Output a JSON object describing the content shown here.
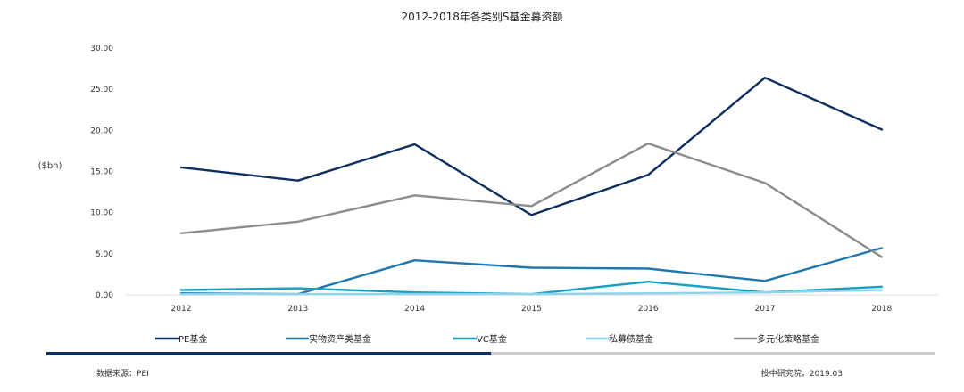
{
  "chart_data": {
    "type": "line",
    "title": "2012-2018年各类别S基金募资额",
    "ylabel": "($bn)",
    "xlabel": "",
    "ylim": [
      0,
      30
    ],
    "yticks": [
      "0.00",
      "5.00",
      "10.00",
      "15.00",
      "20.00",
      "25.00",
      "30.00"
    ],
    "categories": [
      "2012",
      "2013",
      "2014",
      "2015",
      "2016",
      "2017",
      "2018"
    ],
    "grid": false,
    "legend_position": "bottom",
    "series": [
      {
        "name": "PE基金",
        "color": "#0d2e5e",
        "values": [
          15.5,
          13.9,
          18.3,
          9.7,
          14.6,
          26.4,
          20.1
        ]
      },
      {
        "name": "实物资产类基金",
        "color": "#1f77b0",
        "values": [
          0.2,
          0.1,
          4.2,
          3.3,
          3.2,
          1.7,
          5.7
        ]
      },
      {
        "name": "VC基金",
        "color": "#17a0c4",
        "values": [
          0.6,
          0.8,
          0.3,
          0.1,
          1.6,
          0.3,
          1.0
        ]
      },
      {
        "name": "私募债基金",
        "color": "#8fd3ea",
        "values": [
          0.1,
          0.1,
          0.1,
          0.1,
          0.2,
          0.3,
          0.6
        ]
      },
      {
        "name": "多元化策略基金",
        "color": "#8c8c8c",
        "values": [
          7.5,
          8.9,
          12.1,
          10.8,
          18.4,
          13.6,
          4.6
        ]
      }
    ]
  },
  "footer": {
    "source": "数据来源：PEI",
    "credit": "投中研究院，2019.03"
  },
  "colors": {
    "progress_dark": "#0d2e5e",
    "progress_light": "#cccccc"
  }
}
